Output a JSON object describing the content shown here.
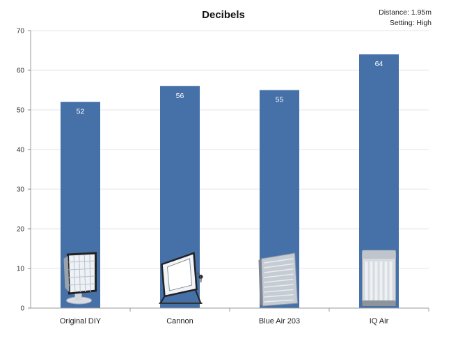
{
  "chart_data": {
    "type": "bar",
    "title": "Decibels",
    "annotations": [
      "Distance: 1.95m",
      "Setting: High"
    ],
    "categories": [
      "Original DIY",
      "Cannon",
      "Blue Air 203",
      "IQ Air"
    ],
    "values": [
      52,
      56,
      55,
      64
    ],
    "ylim": [
      0,
      70
    ],
    "yticks": [
      0,
      10,
      20,
      30,
      40,
      50,
      60,
      70
    ],
    "xlabel": "",
    "ylabel": "",
    "grid": true,
    "legend": "none",
    "bar_color": "#4570a8",
    "grid_color": "#e6e6e6",
    "product_images": [
      "framed-filter-purifier-image",
      "box-fan-filter-purifier-image",
      "blueair-purifier-image",
      "iqair-purifier-image"
    ]
  }
}
